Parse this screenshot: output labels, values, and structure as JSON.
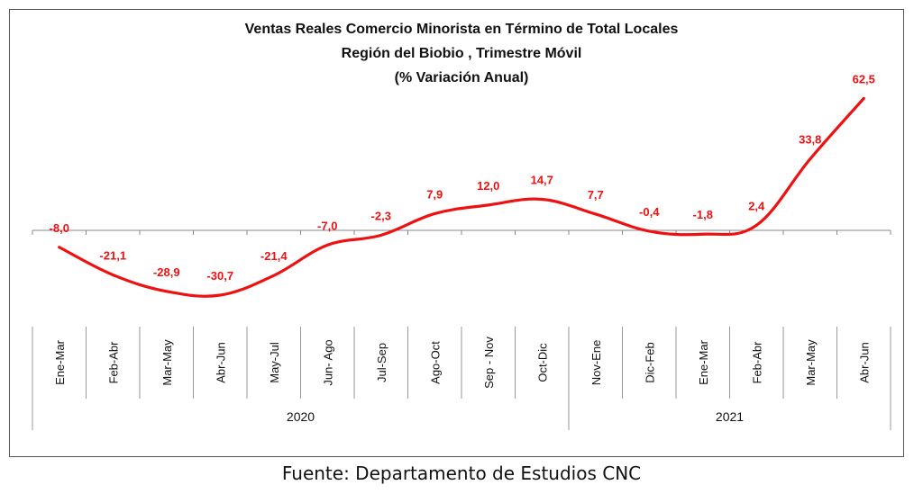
{
  "chart_data": {
    "type": "line",
    "title": [
      "Ventas Reales Comercio Minorista  en Término de Total Locales",
      "Región del Biobio , Trimestre Móvil",
      "(% Variación Anual)"
    ],
    "categories": [
      "Ene-Mar",
      "Feb-Abr",
      "Mar-May",
      "Abr-Jun",
      "May-Jul",
      "Jun- Ago",
      "Jul-Sep",
      "Ago-Oct",
      "Sep - Nov",
      "Oct-Dic",
      "Nov-Ene",
      "Dic-Feb",
      "Ene-Mar",
      "Feb-Abr",
      "Mar-May",
      "Abr-Jun"
    ],
    "groups": [
      {
        "label": "2020",
        "count": 10
      },
      {
        "label": "2021",
        "count": 6
      }
    ],
    "series": [
      {
        "values": [
          -8.0,
          -21.1,
          -28.9,
          -30.7,
          -21.4,
          -7.0,
          -2.3,
          7.9,
          12.0,
          14.7,
          7.7,
          -0.4,
          -1.8,
          2.4,
          33.8,
          62.5
        ],
        "labels": [
          "-8,0",
          "-21,1",
          "-28,9",
          "-30,7",
          "-21,4",
          "-7,0",
          "-2,3",
          "7,9",
          "12,0",
          "14,7",
          "7,7",
          "-0,4",
          "-1,8",
          "2,4",
          "33,8",
          "62,5"
        ],
        "color": "#ee1111"
      }
    ],
    "ylim": [
      -45,
      65
    ],
    "grid": false,
    "legend": "none"
  },
  "source": "Fuente: Departamento de Estudios CNC"
}
